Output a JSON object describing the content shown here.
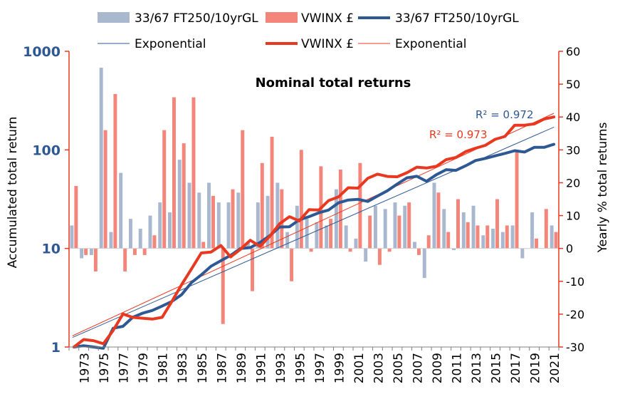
{
  "chart_data": {
    "type": "bar+line",
    "title": "Nominal total returns",
    "left_axis": {
      "label": "Accumulated total return",
      "scale": "log",
      "range": [
        1,
        1000
      ],
      "ticks": [
        "1",
        "10",
        "100",
        "1000"
      ]
    },
    "right_axis": {
      "label": "Yearly % total returns",
      "range": [
        -30,
        60
      ],
      "ticks": [
        "-30",
        "-20",
        "-10",
        "0",
        "10",
        "20",
        "30",
        "40",
        "50",
        "60"
      ]
    },
    "years": [
      1972,
      1973,
      1974,
      1975,
      1976,
      1977,
      1978,
      1979,
      1980,
      1981,
      1982,
      1983,
      1984,
      1985,
      1986,
      1987,
      1988,
      1989,
      1990,
      1991,
      1992,
      1993,
      1994,
      1995,
      1996,
      1997,
      1998,
      1999,
      2000,
      2001,
      2002,
      2003,
      2004,
      2005,
      2006,
      2007,
      2008,
      2009,
      2010,
      2011,
      2012,
      2013,
      2014,
      2015,
      2016,
      2017,
      2018,
      2019,
      2020,
      2021
    ],
    "x_tick_labels": [
      "1973",
      "1975",
      "1977",
      "1979",
      "1981",
      "1983",
      "1985",
      "1987",
      "1989",
      "1991",
      "1993",
      "1995",
      "1997",
      "1999",
      "2001",
      "2003",
      "2005",
      "2007",
      "2009",
      "2011",
      "2013",
      "2015",
      "2017",
      "2019",
      "2021"
    ],
    "legend": {
      "bar_ft": "33/67 FT250/10yrGL",
      "bar_vw": "VWINX £",
      "line_ft": "33/67 FT250/10yrGL",
      "exp_ft": "Exponential",
      "line_vw": "VWINX £",
      "exp_vw": "Exponential"
    },
    "annotations": {
      "r2_ft": "R² = 0.972",
      "r2_vw": "R² = 0.973"
    },
    "series": [
      {
        "name": "33/67 FT250/10yrGL yearly %",
        "kind": "bar",
        "axis": "right",
        "values": [
          7,
          -3,
          -2,
          55,
          5,
          23,
          9,
          6,
          10,
          14,
          11,
          27,
          20,
          17,
          20,
          14,
          14,
          17,
          2,
          14,
          16,
          20,
          5,
          13,
          9,
          8,
          7,
          18,
          7,
          3,
          -4,
          13,
          12,
          14,
          13,
          2,
          -9,
          20,
          12,
          -0.5,
          11,
          13,
          4,
          6,
          5,
          7,
          -3,
          11,
          0,
          7
        ]
      },
      {
        "name": "VWINX £ yearly %",
        "kind": "bar",
        "axis": "right",
        "values": [
          19,
          -2,
          -7,
          36,
          47,
          -7,
          -2,
          -2,
          4,
          36,
          46,
          32,
          46,
          2,
          16,
          -23,
          18,
          36,
          -13,
          26,
          34,
          18,
          -10,
          30,
          -1,
          25,
          9,
          24,
          -1,
          26,
          10,
          -5,
          -1,
          10,
          14,
          -2,
          4,
          17,
          5,
          15,
          8,
          7,
          7,
          15,
          7,
          30,
          0,
          3,
          12,
          5
        ]
      },
      {
        "name": "33/67 FT250/10yrGL accumulated",
        "kind": "line",
        "axis": "left",
        "values": [
          1.0,
          1.03,
          1.0,
          0.97,
          1.55,
          1.62,
          2.0,
          2.2,
          2.35,
          2.6,
          2.9,
          3.4,
          4.5,
          5.4,
          6.6,
          7.5,
          8.5,
          10.0,
          10.2,
          11.5,
          13.5,
          16.5,
          16.6,
          19.5,
          21.0,
          23.0,
          24.5,
          29.0,
          31.0,
          31.5,
          30.0,
          34.0,
          38.5,
          45.0,
          52.0,
          54.0,
          48.0,
          56.0,
          63.0,
          62.0,
          69.0,
          78.0,
          82.0,
          87.0,
          92.0,
          98.0,
          95.0,
          106.0,
          106.0,
          114.0
        ]
      },
      {
        "name": "VWINX £ accumulated",
        "kind": "line",
        "axis": "left",
        "values": [
          1.0,
          1.19,
          1.16,
          1.08,
          1.47,
          2.16,
          2.0,
          1.96,
          1.92,
          2.0,
          2.9,
          4.3,
          6.2,
          9.0,
          9.2,
          10.7,
          8.2,
          9.8,
          12.1,
          10.5,
          13.3,
          17.8,
          21.0,
          19.0,
          24.7,
          24.5,
          30.6,
          33.3,
          41.3,
          40.9,
          51.5,
          56.7,
          53.8,
          53.3,
          58.6,
          66.8,
          65.5,
          68.1,
          79.7,
          83.7,
          96.2,
          103.9,
          111.2,
          127.9,
          136.9,
          177.9,
          178.0,
          183.3,
          205.3,
          215.6
        ]
      },
      {
        "name": "Exponential (33/67 FT250/10yrGL)",
        "kind": "trend",
        "axis": "left",
        "start": {
          "year": 1972,
          "value": 1.25
        },
        "end": {
          "year": 2021,
          "value": 170
        }
      },
      {
        "name": "Exponential (VWINX £)",
        "kind": "trend",
        "axis": "left",
        "start": {
          "year": 1972,
          "value": 1.3
        },
        "end": {
          "year": 2021,
          "value": 235
        }
      }
    ],
    "colors": {
      "bar_ft": "#a9b8cf",
      "bar_vw": "#f4857a",
      "line_ft": "#2e5893",
      "line_vw": "#e8381f",
      "trend_ft": "#2e5893",
      "trend_vw": "#e8381f",
      "left_axis": "#2e5893",
      "right_axis": "#e8381f",
      "r2_ft": "#2e5893",
      "r2_vw": "#e8381f"
    }
  }
}
